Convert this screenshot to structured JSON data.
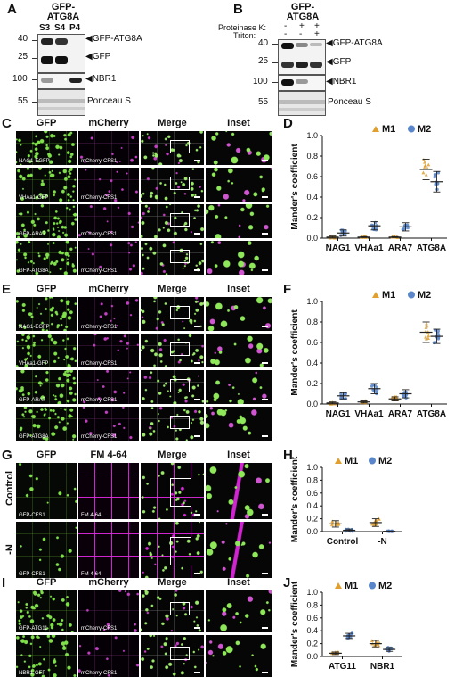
{
  "panelA": {
    "label": "A",
    "title_line1": "GFP-",
    "title_line2": "ATG8A",
    "lanes": [
      "S3",
      "S4",
      "P4"
    ],
    "mw": [
      "40",
      "25",
      "100",
      "55"
    ],
    "bands": [
      "GFP-ATG8A",
      "GFP",
      "NBR1",
      "Ponceau S"
    ]
  },
  "panelB": {
    "label": "B",
    "title_line1": "GFP-",
    "title_line2": "ATG8A",
    "proteinase_label": "Proteinase K:",
    "triton_label": "Triton:",
    "proteinase_signs": [
      "-",
      "+",
      "+"
    ],
    "triton_signs": [
      "-",
      "-",
      "+"
    ],
    "mw": [
      "40",
      "25",
      "100",
      "55"
    ],
    "bands": [
      "GFP-ATG8A",
      "GFP",
      "NBR1",
      "Ponceau S"
    ]
  },
  "panelC": {
    "label": "C",
    "headers": [
      "GFP",
      "mCherry",
      "Merge",
      "Inset"
    ],
    "rows": [
      {
        "gfp": "NAG1-EGFP",
        "mch": "mCherry-CFS1"
      },
      {
        "gfp": "VHAa1-GFP",
        "mch": "mCherry-CFS1"
      },
      {
        "gfp": "GFP-ARA7",
        "mch": "mCherry-CFS1"
      },
      {
        "gfp": "GFP-ATG8A",
        "mch": "mCherry-CFS1"
      }
    ]
  },
  "panelE": {
    "label": "E",
    "headers": [
      "GFP",
      "mCherry",
      "Merge",
      "Inset"
    ],
    "rows": [
      {
        "gfp": "NAG1-EGFP",
        "mch": "mCherry-CFS1"
      },
      {
        "gfp": "VHAa1-GFP",
        "mch": "mCherry-CFS1"
      },
      {
        "gfp": "GFP-ARA7",
        "mch": "mCherry-CFS1"
      },
      {
        "gfp": "GFP-ATG8A",
        "mch": "mCherry-CFS1"
      }
    ]
  },
  "panelG": {
    "label": "G",
    "headers": [
      "GFP",
      "FM 4-64",
      "Merge",
      "Inset"
    ],
    "rows": [
      {
        "side": "Control",
        "gfp": "GFP-CFS1",
        "mch": "FM 4-64"
      },
      {
        "side": "-N",
        "gfp": "GFP-CFS1",
        "mch": "FM 4-64"
      }
    ]
  },
  "panelI": {
    "label": "I",
    "headers": [
      "GFP",
      "mCherry",
      "Merge",
      "Inset"
    ],
    "rows": [
      {
        "gfp": "GFP-ATG11",
        "mch": "mCherry-CFS1"
      },
      {
        "gfp": "NBR1-GFP",
        "mch": "mCherry-CFS1"
      }
    ]
  },
  "chart_data": [
    {
      "panel": "D",
      "type": "scatter",
      "ylabel": "Mander's coefficient",
      "ylim": [
        0,
        1.0
      ],
      "yticks": [
        "0.0",
        "0.2",
        "0.4",
        "0.6",
        "0.8",
        "1.0"
      ],
      "categories": [
        "NAG1",
        "VHAa1",
        "ARA7",
        "ATG8A"
      ],
      "legend": "top-right",
      "series": [
        {
          "name": "M1",
          "color": "#E0A030",
          "marker": "triangle",
          "mean": [
            0.01,
            0.01,
            0.01,
            0.67
          ],
          "sd": [
            0.01,
            0.005,
            0.005,
            0.1
          ]
        },
        {
          "name": "M2",
          "color": "#5B86C9",
          "marker": "circle",
          "mean": [
            0.05,
            0.12,
            0.11,
            0.55
          ],
          "sd": [
            0.03,
            0.04,
            0.04,
            0.1
          ]
        }
      ]
    },
    {
      "panel": "F",
      "type": "scatter",
      "ylabel": "Mander's coefficient",
      "ylim": [
        0,
        1.0
      ],
      "yticks": [
        "0.0",
        "0.2",
        "0.4",
        "0.6",
        "0.8",
        "1.0"
      ],
      "categories": [
        "NAG1",
        "VHAa1",
        "ARA7",
        "ATG8A"
      ],
      "legend": "top-right",
      "series": [
        {
          "name": "M1",
          "color": "#E0A030",
          "marker": "triangle",
          "mean": [
            0.01,
            0.02,
            0.05,
            0.7
          ],
          "sd": [
            0.01,
            0.01,
            0.02,
            0.1
          ]
        },
        {
          "name": "M2",
          "color": "#5B86C9",
          "marker": "circle",
          "mean": [
            0.08,
            0.15,
            0.1,
            0.66
          ],
          "sd": [
            0.03,
            0.05,
            0.04,
            0.07
          ]
        }
      ]
    },
    {
      "panel": "H",
      "type": "scatter",
      "ylabel": "Mander's coefficient",
      "ylim": [
        0,
        1.0
      ],
      "yticks": [
        "0.0",
        "0.2",
        "0.4",
        "0.6",
        "0.8",
        "1.0"
      ],
      "categories": [
        "Control",
        "-N"
      ],
      "legend": "top",
      "series": [
        {
          "name": "M1",
          "color": "#E0A030",
          "marker": "triangle",
          "mean": [
            0.12,
            0.14
          ],
          "sd": [
            0.05,
            0.06
          ]
        },
        {
          "name": "M2",
          "color": "#5B86C9",
          "marker": "circle",
          "mean": [
            0.02,
            0.005
          ],
          "sd": [
            0.02,
            0.005
          ]
        }
      ]
    },
    {
      "panel": "J",
      "type": "scatter",
      "ylabel": "Mander's coefficient",
      "ylim": [
        0,
        1.0
      ],
      "yticks": [
        "0.0",
        "0.2",
        "0.4",
        "0.6",
        "0.8",
        "1.0"
      ],
      "categories": [
        "ATG11",
        "NBR1"
      ],
      "legend": "top",
      "series": [
        {
          "name": "M1",
          "color": "#E0A030",
          "marker": "triangle",
          "mean": [
            0.05,
            0.2
          ],
          "sd": [
            0.02,
            0.05
          ]
        },
        {
          "name": "M2",
          "color": "#5B86C9",
          "marker": "circle",
          "mean": [
            0.32,
            0.11
          ],
          "sd": [
            0.04,
            0.03
          ]
        }
      ]
    }
  ]
}
